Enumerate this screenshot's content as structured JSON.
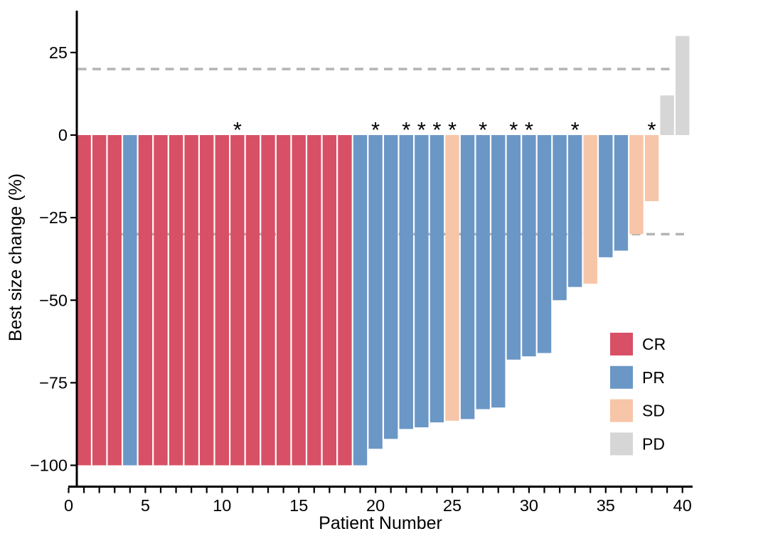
{
  "chart_data": {
    "type": "bar",
    "subtype": "waterfall",
    "title": "",
    "xlabel": "Patient Number",
    "ylabel": "Best size change (%)",
    "x_axis": {
      "labeled_ticks": [
        0,
        5,
        10,
        15,
        20,
        25,
        30,
        35,
        40
      ],
      "minor_tick_step": 1,
      "range": [
        0,
        40
      ]
    },
    "y_axis": {
      "tick_values": [
        25,
        0,
        -25,
        -50,
        -75,
        -100
      ],
      "tick_labels": [
        "25",
        "0",
        "−25",
        "−50",
        "−75",
        "−100"
      ],
      "range": [
        -107,
        38
      ]
    },
    "reference_lines": [
      {
        "y": 20,
        "style": "dashed",
        "color": "#b4b4b4"
      },
      {
        "y": -30,
        "style": "dashed",
        "color": "#b4b4b4"
      }
    ],
    "annotation_symbol": "*",
    "colors": {
      "CR": "#d85066",
      "PR": "#6b97c6",
      "SD": "#f7c5a8",
      "PD": "#d6d6d6"
    },
    "legend": {
      "position": "bottom-right",
      "items": [
        {
          "label": "CR",
          "color": "#d85066"
        },
        {
          "label": "PR",
          "color": "#6b97c6"
        },
        {
          "label": "SD",
          "color": "#f7c5a8"
        },
        {
          "label": "PD",
          "color": "#d6d6d6"
        }
      ]
    },
    "patients": [
      {
        "patient": 1,
        "value": -100,
        "response": "CR",
        "asterisk": false
      },
      {
        "patient": 2,
        "value": -100,
        "response": "CR",
        "asterisk": false
      },
      {
        "patient": 3,
        "value": -100,
        "response": "CR",
        "asterisk": false
      },
      {
        "patient": 4,
        "value": -100,
        "response": "PR",
        "asterisk": false
      },
      {
        "patient": 5,
        "value": -100,
        "response": "CR",
        "asterisk": false
      },
      {
        "patient": 6,
        "value": -100,
        "response": "CR",
        "asterisk": false
      },
      {
        "patient": 7,
        "value": -100,
        "response": "CR",
        "asterisk": false
      },
      {
        "patient": 8,
        "value": -100,
        "response": "CR",
        "asterisk": false
      },
      {
        "patient": 9,
        "value": -100,
        "response": "CR",
        "asterisk": false
      },
      {
        "patient": 10,
        "value": -100,
        "response": "CR",
        "asterisk": false
      },
      {
        "patient": 11,
        "value": -100,
        "response": "CR",
        "asterisk": true
      },
      {
        "patient": 12,
        "value": -100,
        "response": "CR",
        "asterisk": false
      },
      {
        "patient": 13,
        "value": -100,
        "response": "CR",
        "asterisk": false
      },
      {
        "patient": 14,
        "value": -100,
        "response": "CR",
        "asterisk": false
      },
      {
        "patient": 15,
        "value": -100,
        "response": "CR",
        "asterisk": false
      },
      {
        "patient": 16,
        "value": -100,
        "response": "CR",
        "asterisk": false
      },
      {
        "patient": 17,
        "value": -100,
        "response": "CR",
        "asterisk": false
      },
      {
        "patient": 18,
        "value": -100,
        "response": "CR",
        "asterisk": false
      },
      {
        "patient": 19,
        "value": -100,
        "response": "PR",
        "asterisk": false
      },
      {
        "patient": 20,
        "value": -95,
        "response": "PR",
        "asterisk": true
      },
      {
        "patient": 21,
        "value": -92,
        "response": "PR",
        "asterisk": false
      },
      {
        "patient": 22,
        "value": -89,
        "response": "PR",
        "asterisk": true
      },
      {
        "patient": 23,
        "value": -88.5,
        "response": "PR",
        "asterisk": true
      },
      {
        "patient": 24,
        "value": -87,
        "response": "PR",
        "asterisk": true
      },
      {
        "patient": 25,
        "value": -86.5,
        "response": "SD",
        "asterisk": true
      },
      {
        "patient": 26,
        "value": -86,
        "response": "PR",
        "asterisk": false
      },
      {
        "patient": 27,
        "value": -83,
        "response": "PR",
        "asterisk": true
      },
      {
        "patient": 28,
        "value": -82.5,
        "response": "PR",
        "asterisk": false
      },
      {
        "patient": 29,
        "value": -68,
        "response": "PR",
        "asterisk": true
      },
      {
        "patient": 30,
        "value": -67,
        "response": "PR",
        "asterisk": true
      },
      {
        "patient": 31,
        "value": -66,
        "response": "PR",
        "asterisk": false
      },
      {
        "patient": 32,
        "value": -50,
        "response": "PR",
        "asterisk": false
      },
      {
        "patient": 33,
        "value": -46,
        "response": "PR",
        "asterisk": true
      },
      {
        "patient": 34,
        "value": -45,
        "response": "SD",
        "asterisk": false
      },
      {
        "patient": 35,
        "value": -37,
        "response": "PR",
        "asterisk": false
      },
      {
        "patient": 36,
        "value": -35,
        "response": "PR",
        "asterisk": false
      },
      {
        "patient": 37,
        "value": -30,
        "response": "SD",
        "asterisk": false
      },
      {
        "patient": 38,
        "value": -20,
        "response": "SD",
        "asterisk": true
      },
      {
        "patient": 39,
        "value": 12,
        "response": "PD",
        "asterisk": false
      },
      {
        "patient": 40,
        "value": 30,
        "response": "PD",
        "asterisk": false
      }
    ]
  }
}
